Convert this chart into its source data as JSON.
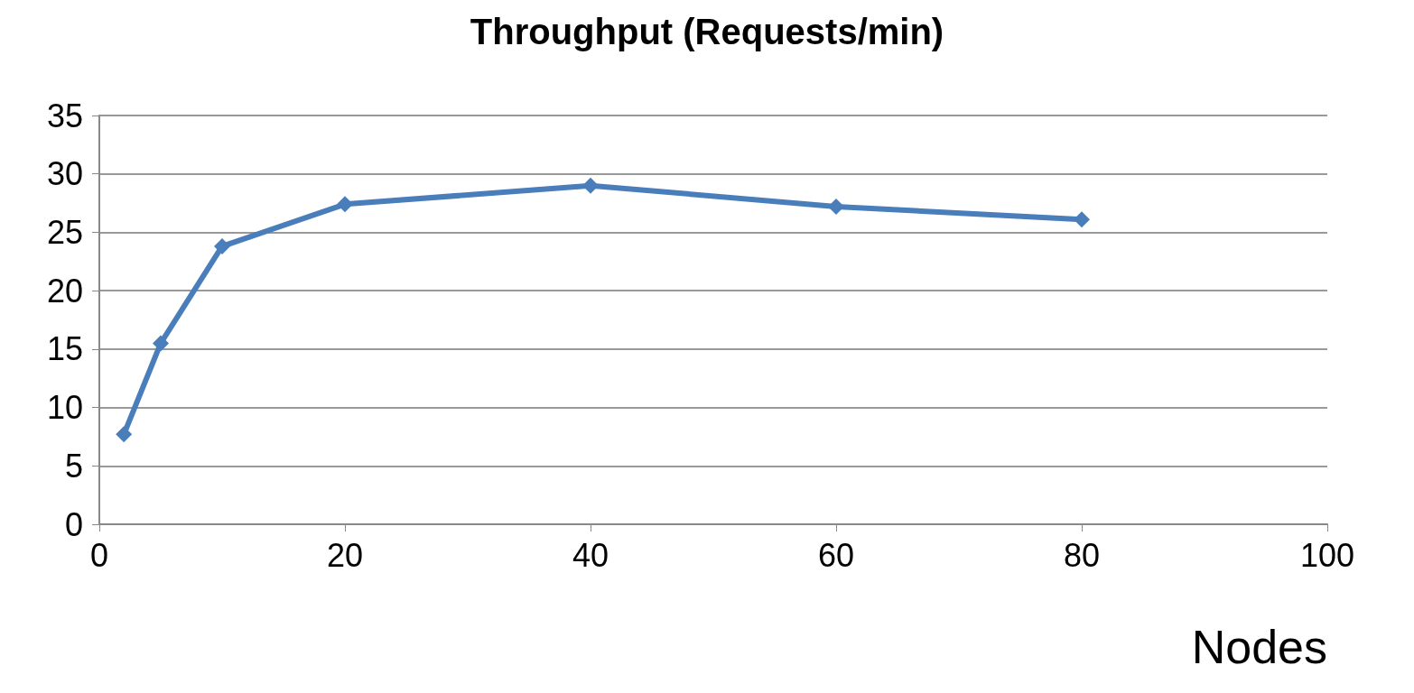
{
  "chart_data": {
    "type": "line",
    "title": "Throughput (Requests/min)",
    "xlabel": "Nodes",
    "x": [
      2,
      5,
      10,
      20,
      40,
      60,
      80
    ],
    "series": [
      {
        "color": "#4a7ebb",
        "values": [
          7.7,
          15.5,
          23.8,
          27.4,
          29.0,
          27.2,
          26.1
        ]
      }
    ],
    "xlim": [
      0,
      100
    ],
    "xticks": [
      0,
      20,
      40,
      60,
      80,
      100
    ],
    "ylim": [
      0,
      35
    ],
    "yticks": [
      0,
      5,
      10,
      15,
      20,
      25,
      30,
      35
    ],
    "grid": "y",
    "marker": "diamond",
    "line_style": "solid"
  }
}
